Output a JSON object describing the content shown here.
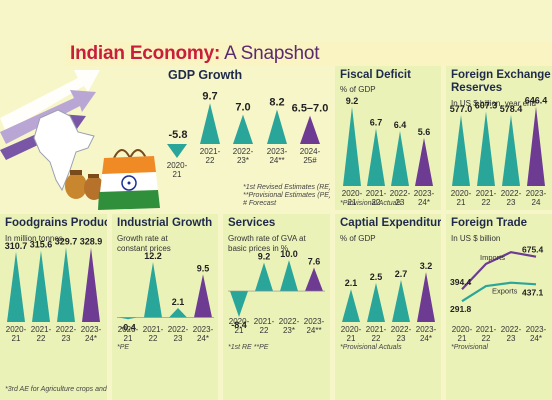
{
  "title": {
    "part1": "Indian Economy:",
    "part2": "A Snapshot"
  },
  "colors": {
    "teal": "#2aa59a",
    "purple": "#6e3b93",
    "bg": "#f7f6c9",
    "panel": "#eaf2b8",
    "title_red": "#c81d3b"
  },
  "icons": [
    "upward-arrows-icon",
    "india-map-icon",
    "money-bags-icon",
    "shopping-bag-icon",
    "indian-flag-icon"
  ],
  "gdp": {
    "title": "GDP Growth",
    "notes": [
      "*1st Revised Estimates (RE)",
      "**Provisional Estimates (PE)",
      "# Forecast"
    ],
    "chart_data": {
      "type": "bar",
      "categories": [
        "2020-21",
        "2021-22",
        "2022-23*",
        "2023-24**",
        "2024-25#"
      ],
      "values": [
        -5.8,
        9.7,
        7.0,
        8.2,
        6.75
      ],
      "labels": [
        "-5.8",
        "9.7",
        "7.0",
        "8.2",
        "6.5–7.0"
      ]
    }
  },
  "fiscal": {
    "title": "Fiscal Deficit",
    "subtitle": "% of GDP",
    "note": "*Provisional Actuals",
    "chart_data": {
      "type": "bar",
      "categories": [
        "2020-21",
        "2021-22",
        "2022-23",
        "2023-24*"
      ],
      "values": [
        9.2,
        6.7,
        6.4,
        5.6
      ],
      "labels": [
        "9.2",
        "6.7",
        "6.4",
        "5.6"
      ]
    }
  },
  "forex": {
    "title": "Foreign Exchange Reserves",
    "subtitle": "In US $ billion, year end",
    "chart_data": {
      "type": "bar",
      "categories": [
        "2020-21",
        "2021-22",
        "2022-23",
        "2023-24"
      ],
      "values": [
        577.0,
        607.3,
        578.4,
        646.4
      ],
      "labels": [
        "577.0",
        "607.3",
        "578.4",
        "646.4"
      ]
    }
  },
  "foodgrains": {
    "title": "Foodgrains Production",
    "subtitle": "In million tonnes",
    "note": "*3rd AE for Agriculture crops and",
    "chart_data": {
      "type": "bar",
      "categories": [
        "2020-21",
        "2021-22",
        "2022-23",
        "2023-24*"
      ],
      "values": [
        310.7,
        315.6,
        329.7,
        328.9
      ],
      "labels": [
        "310.7",
        "315.6",
        "329.7",
        "328.9"
      ]
    }
  },
  "industrial": {
    "title": "Industrial Growth",
    "subtitle": "Growth rate at constant prices",
    "note": "*PE",
    "chart_data": {
      "type": "bar",
      "categories": [
        "2020-21",
        "2021-22",
        "2022-23",
        "2023-24*"
      ],
      "values": [
        -0.4,
        12.2,
        2.1,
        9.5
      ],
      "labels": [
        "-0.4",
        "12.2",
        "2.1",
        "9.5"
      ]
    }
  },
  "services": {
    "title": "Services",
    "subtitle": "Growth rate of GVA at basic prices in %",
    "note": "*1st RE  **PE",
    "chart_data": {
      "type": "bar",
      "categories": [
        "2020-21",
        "2021-22",
        "2022-23*",
        "2023-24**"
      ],
      "values": [
        -8.4,
        9.2,
        10.0,
        7.6
      ],
      "labels": [
        "-8.4",
        "9.2",
        "10.0",
        "7.6"
      ]
    }
  },
  "capex": {
    "title": "Captial Expenditure",
    "subtitle": "% of GDP",
    "note": "*Provisional Actuals",
    "chart_data": {
      "type": "bar",
      "categories": [
        "2020-21",
        "2021-22",
        "2022-23",
        "2023-24*"
      ],
      "values": [
        2.1,
        2.5,
        2.7,
        3.2
      ],
      "labels": [
        "2.1",
        "2.5",
        "2.7",
        "3.2"
      ]
    }
  },
  "trade": {
    "title": "Foreign Trade",
    "subtitle": "In US $ billion",
    "note": "*Provisional",
    "chart_data": {
      "type": "line",
      "categories": [
        "2020-21",
        "2021-22",
        "2022-23",
        "2023-24*"
      ],
      "series": [
        {
          "name": "Imports",
          "values": [
            394.4,
            613.0,
            714.0,
            675.4
          ]
        },
        {
          "name": "Exports",
          "values": [
            291.8,
            422.0,
            451.0,
            437.1
          ]
        }
      ],
      "labels": {
        "imports_first": "394.4",
        "imports_last": "675.4",
        "exports_first": "291.8",
        "exports_last": "437.1"
      }
    }
  }
}
